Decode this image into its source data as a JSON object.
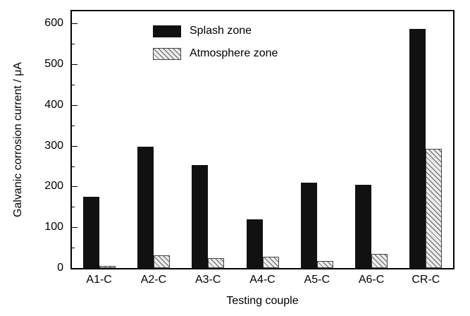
{
  "chart_data": {
    "type": "bar",
    "title": "",
    "xlabel": "Testing couple",
    "ylabel": "Galvanic corrosion current / μA",
    "categories": [
      "A1-C",
      "A2-C",
      "A3-C",
      "A4-C",
      "A5-C",
      "A6-C",
      "CR-C"
    ],
    "series": [
      {
        "name": "Splash zone",
        "style": "solid",
        "values": [
          175,
          297,
          252,
          119,
          209,
          204,
          587
        ]
      },
      {
        "name": "Atmosphere zone",
        "style": "hatch",
        "values": [
          5,
          32,
          25,
          28,
          18,
          34,
          292
        ]
      }
    ],
    "ylim": [
      0,
      630
    ],
    "yticks": [
      0,
      100,
      200,
      300,
      400,
      500,
      600
    ],
    "minor_tick_interval": 50,
    "grid": false,
    "legend_position": "top-left-inside",
    "colors": {
      "bar_solid": "#111111",
      "hatch_background": "#ececec",
      "hatch_line": "#5a5a5a",
      "frame": "#000000"
    }
  }
}
